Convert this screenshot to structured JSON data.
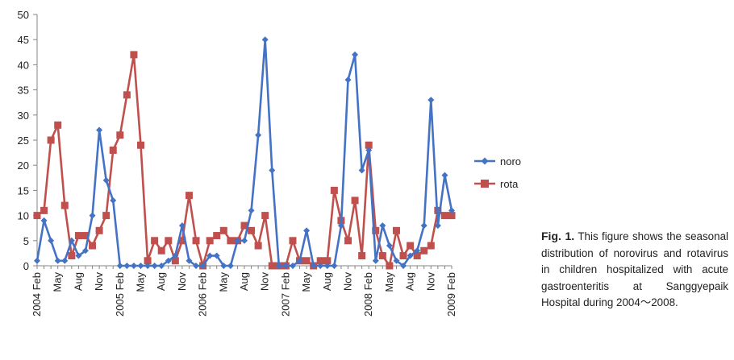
{
  "chart_data": {
    "type": "line",
    "ylim": [
      0,
      50
    ],
    "y_ticks": [
      0,
      5,
      10,
      15,
      20,
      25,
      30,
      35,
      40,
      45,
      50
    ],
    "x_tick_labels": [
      {
        "i": 0,
        "label": "2004 Feb"
      },
      {
        "i": 3,
        "label": "May"
      },
      {
        "i": 6,
        "label": "Aug"
      },
      {
        "i": 9,
        "label": "Nov"
      },
      {
        "i": 12,
        "label": "2005 Feb"
      },
      {
        "i": 15,
        "label": "May"
      },
      {
        "i": 18,
        "label": "Aug"
      },
      {
        "i": 21,
        "label": "Nov"
      },
      {
        "i": 24,
        "label": "2006 Feb"
      },
      {
        "i": 27,
        "label": "May"
      },
      {
        "i": 30,
        "label": "Aug"
      },
      {
        "i": 33,
        "label": "Nov"
      },
      {
        "i": 36,
        "label": "2007 Feb"
      },
      {
        "i": 39,
        "label": "May"
      },
      {
        "i": 42,
        "label": "Aug"
      },
      {
        "i": 45,
        "label": "Nov"
      },
      {
        "i": 48,
        "label": "2008 Feb"
      },
      {
        "i": 51,
        "label": "May"
      },
      {
        "i": 54,
        "label": "Aug"
      },
      {
        "i": 57,
        "label": "Nov"
      },
      {
        "i": 60,
        "label": "2009 Feb"
      }
    ],
    "grid": false,
    "legend_position": "right",
    "series": [
      {
        "name": "noro",
        "color": "#4472c4",
        "marker": "diamond",
        "values": [
          1,
          9,
          5,
          1,
          1,
          5,
          2,
          3,
          10,
          27,
          17,
          13,
          0,
          0,
          0,
          0,
          0,
          0,
          0,
          1,
          2,
          8,
          1,
          0,
          0,
          2,
          2,
          0,
          0,
          5,
          5,
          11,
          26,
          45,
          19,
          0,
          0,
          0,
          1,
          7,
          0,
          0,
          0,
          0,
          8,
          37,
          42,
          19,
          23,
          1,
          8,
          4,
          1,
          0,
          2,
          3,
          8,
          33,
          8,
          18,
          11
        ]
      },
      {
        "name": "rota",
        "color": "#c0504d",
        "marker": "square",
        "values": [
          10,
          11,
          25,
          28,
          12,
          2,
          6,
          6,
          4,
          7,
          10,
          23,
          26,
          34,
          42,
          24,
          1,
          5,
          3,
          5,
          1,
          5,
          14,
          5,
          0,
          5,
          6,
          7,
          5,
          5,
          8,
          7,
          4,
          10,
          0,
          0,
          0,
          5,
          1,
          1,
          0,
          1,
          1,
          15,
          9,
          5,
          13,
          2,
          24,
          7,
          2,
          0,
          7,
          2,
          4,
          2,
          3,
          4,
          11,
          10,
          10
        ]
      }
    ]
  },
  "caption": {
    "label": "Fig. 1.",
    "text": "This figure shows the seasonal distribution of norovirus and rotavirus in children hospitalized with acute gastroenteritis at Sanggyepaik Hospital during 2004～2008."
  }
}
